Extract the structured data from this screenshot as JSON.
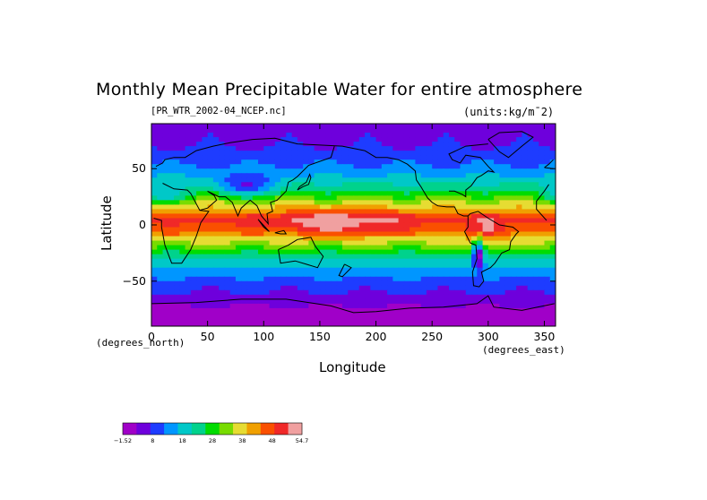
{
  "chart_data": {
    "type": "heatmap",
    "title": "Monthly Mean Precipitable Water for entire atmosphere",
    "subtitle_left": "[PR_WTR_2002-04_NCEP.nc]",
    "subtitle_right": "(units:kg/m¯2)",
    "xlabel": "Longitude",
    "ylabel": "Latitude",
    "x_units": "(degrees_east)",
    "y_units": "(degrees_north)",
    "xlim": [
      0,
      360
    ],
    "ylim": [
      -90,
      90
    ],
    "x_ticks": [
      "0",
      "50",
      "100",
      "150",
      "200",
      "250",
      "300",
      "350"
    ],
    "x_tick_values": [
      0,
      50,
      100,
      150,
      200,
      250,
      300,
      350
    ],
    "y_ticks": [
      "50",
      "0",
      "−50"
    ],
    "y_tick_values": [
      50,
      0,
      -50
    ],
    "colorbar": {
      "tick_labels": [
        "−1.52",
        "8",
        "18",
        "28",
        "38",
        "48",
        "54.7"
      ],
      "min": -1.52,
      "max": 54.7,
      "colors": [
        "#a000c8",
        "#6e00dc",
        "#1e3cff",
        "#0096ff",
        "#00c8c8",
        "#00d28c",
        "#00dc00",
        "#78dc00",
        "#e6dc32",
        "#f0a000",
        "#fa5000",
        "#f02828",
        "#f0a0a0"
      ]
    },
    "zonal_profile": {
      "latitudes": [
        90,
        75,
        60,
        45,
        30,
        15,
        5,
        0,
        -5,
        -15,
        -30,
        -45,
        -60,
        -75,
        -90
      ],
      "values": [
        5,
        6,
        9,
        15,
        24,
        38,
        48,
        45,
        44,
        34,
        20,
        12,
        7,
        2,
        0
      ]
    }
  }
}
